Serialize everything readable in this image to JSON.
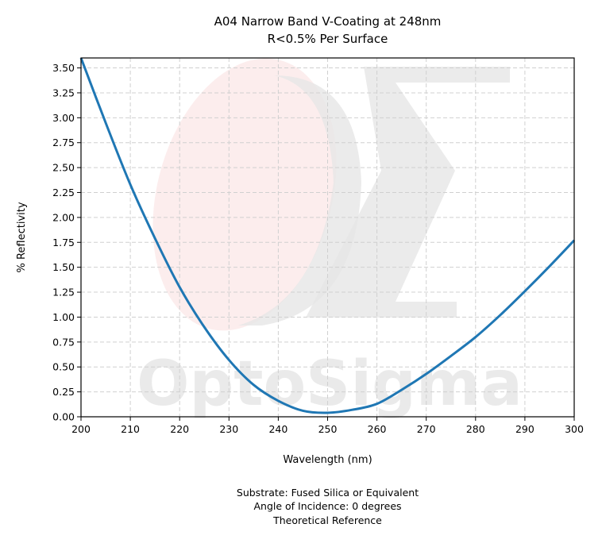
{
  "chart_data": {
    "type": "line",
    "title": "A04 Narrow Band V-Coating at 248nm",
    "subtitle": "R<0.5% Per Surface",
    "xlabel": "Wavelength (nm)",
    "ylabel": "% Reflectivity",
    "xlim": [
      200,
      300
    ],
    "ylim": [
      0,
      3.6
    ],
    "xticks": [
      "200",
      "210",
      "220",
      "230",
      "240",
      "250",
      "260",
      "270",
      "280",
      "290",
      "300"
    ],
    "yticks": [
      "0.00",
      "0.25",
      "0.50",
      "0.75",
      "1.00",
      "1.25",
      "1.50",
      "1.75",
      "2.00",
      "2.25",
      "2.50",
      "2.75",
      "3.00",
      "3.25",
      "3.50"
    ],
    "grid": true,
    "series": [
      {
        "color": "#1f77b4",
        "x": [
          200,
          205,
          210,
          215,
          220,
          225,
          230,
          235,
          240,
          245,
          250,
          255,
          260,
          265,
          270,
          275,
          280,
          285,
          290,
          295,
          300
        ],
        "y": [
          3.6,
          2.95,
          2.33,
          1.79,
          1.3,
          0.9,
          0.57,
          0.32,
          0.16,
          0.06,
          0.04,
          0.07,
          0.13,
          0.27,
          0.43,
          0.61,
          0.8,
          1.02,
          1.26,
          1.51,
          1.77
        ]
      }
    ],
    "watermark": "OptoSigma"
  },
  "footer": {
    "line1": "Substrate: Fused Silica or Equivalent",
    "line2": "Angle of Incidence: 0 degrees",
    "line3": "Theoretical Reference"
  }
}
